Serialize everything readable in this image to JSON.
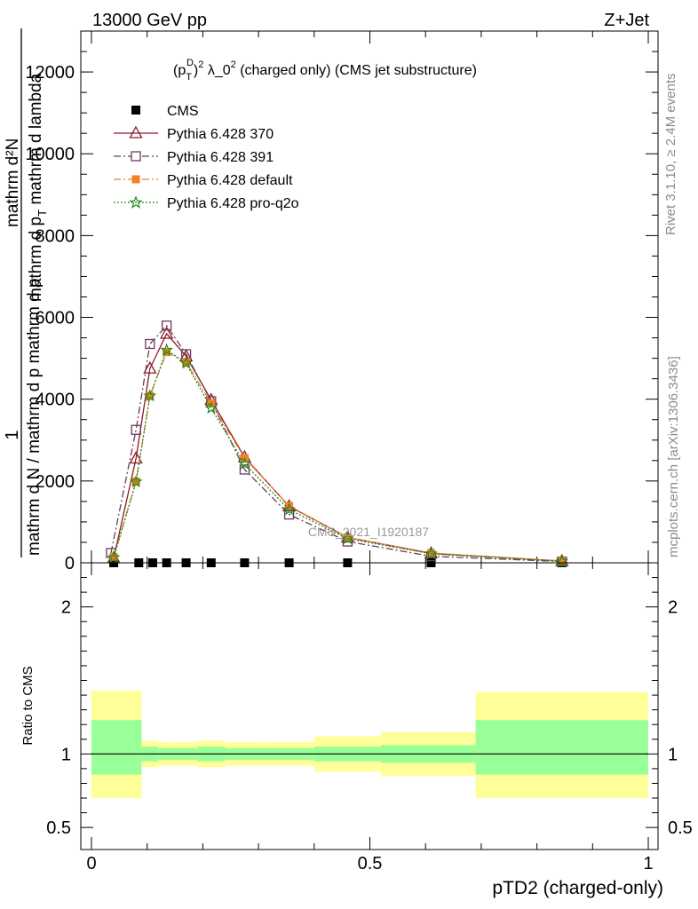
{
  "header": {
    "energy": "13000 GeV pp",
    "process": "Z+Jet"
  },
  "side_labels": {
    "rivet": "Rivet 3.1.10, ≥ 2.4M events",
    "mcplots": "mcplots.cern.ch [arXiv:1306.3436]"
  },
  "watermark": "CMS_2021_I1920187",
  "colors": {
    "cms": "#000000",
    "p370": "#8b1a2b",
    "p391": "#6b3c5a",
    "pdefault": "#f58025",
    "pq2o": "#1e8c1e",
    "band_outer": "#ffff99",
    "band_inner": "#99ff99"
  },
  "chart_data": [
    {
      "type": "line",
      "title_parts": {
        "p": "(p",
        "sub": "T",
        "sup": "D",
        "sq": "2",
        "rest": " λ_0",
        "sq2": "2",
        "tail": " (charged only) (CMS jet substructure)"
      },
      "ylabel": {
        "one": "1",
        "denom": "mathrm d N / mathrm d p mathrm d p",
        "dN": "mathrm d²N",
        "ddenom": "mathrm d p",
        "ddenom_sub": "T",
        "ddenom_tail": " mathrm d lambda"
      },
      "xlim": [
        0,
        1
      ],
      "ylim": [
        0,
        13000
      ],
      "yticks": [
        0,
        2000,
        4000,
        6000,
        8000,
        10000,
        12000
      ],
      "ytick_labels": [
        "0",
        "2000",
        "4000",
        "6000",
        "8000",
        "10000",
        "12000"
      ],
      "series": [
        {
          "name": "CMS",
          "x": [
            0.04,
            0.085,
            0.11,
            0.135,
            0.17,
            0.215,
            0.275,
            0.355,
            0.46,
            0.61,
            0.845
          ],
          "y": [
            0,
            0,
            0,
            0,
            0,
            0,
            0,
            0,
            0,
            0,
            0
          ]
        },
        {
          "name": "Pythia 6.428 370",
          "x": [
            0.04,
            0.08,
            0.105,
            0.135,
            0.17,
            0.215,
            0.275,
            0.355,
            0.46,
            0.61,
            0.845
          ],
          "y": [
            120,
            2550,
            4750,
            5600,
            5050,
            3980,
            2580,
            1380,
            620,
            230,
            40
          ]
        },
        {
          "name": "Pythia 6.428 391",
          "x": [
            0.035,
            0.08,
            0.105,
            0.135,
            0.17,
            0.215,
            0.275,
            0.355,
            0.46,
            0.61,
            0.845
          ],
          "y": [
            240,
            3250,
            5350,
            5800,
            5100,
            3950,
            2280,
            1180,
            520,
            160,
            30
          ]
        },
        {
          "name": "Pythia 6.428 default",
          "x": [
            0.04,
            0.08,
            0.105,
            0.135,
            0.17,
            0.215,
            0.275,
            0.355,
            0.46,
            0.61,
            0.845
          ],
          "y": [
            140,
            1990,
            4080,
            5150,
            4900,
            3900,
            2560,
            1390,
            620,
            240,
            45
          ]
        },
        {
          "name": "Pythia 6.428 pro-q2o",
          "x": [
            0.04,
            0.08,
            0.105,
            0.135,
            0.17,
            0.215,
            0.275,
            0.355,
            0.46,
            0.61,
            0.845
          ],
          "y": [
            130,
            1980,
            4080,
            5200,
            4880,
            3780,
            2420,
            1300,
            590,
            220,
            40
          ]
        }
      ]
    },
    {
      "type": "area",
      "ylabel": "Ratio to CMS",
      "xlabel": "pTD2 (charged-only)",
      "xlim": [
        0,
        1
      ],
      "ylim": [
        0.35,
        2.3
      ],
      "yticks": [
        0.5,
        1,
        2
      ],
      "ytick_labels": [
        "0.5",
        "1",
        "2"
      ],
      "xticks": [
        0,
        0.5,
        1
      ],
      "xtick_labels": [
        "0",
        "0.5",
        "1"
      ],
      "bins": [
        0,
        0.09,
        0.12,
        0.15,
        0.19,
        0.24,
        0.31,
        0.4,
        0.52,
        0.69,
        1.0
      ],
      "outer_lo": [
        0.7,
        0.91,
        0.92,
        0.92,
        0.91,
        0.92,
        0.92,
        0.88,
        0.85,
        0.7
      ],
      "outer_hi": [
        1.43,
        1.09,
        1.08,
        1.08,
        1.09,
        1.08,
        1.08,
        1.12,
        1.15,
        1.42
      ],
      "inner_lo": [
        0.86,
        0.95,
        0.96,
        0.96,
        0.95,
        0.96,
        0.96,
        0.95,
        0.94,
        0.86
      ],
      "inner_hi": [
        1.23,
        1.05,
        1.04,
        1.04,
        1.05,
        1.04,
        1.04,
        1.05,
        1.06,
        1.23
      ],
      "ref": 1
    }
  ]
}
